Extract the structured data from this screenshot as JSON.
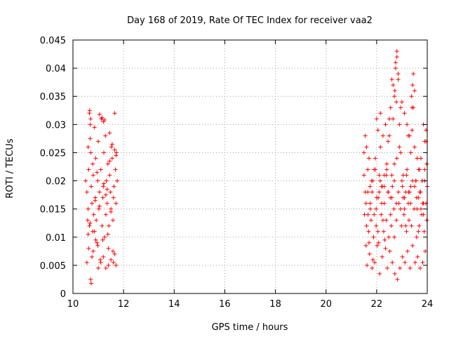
{
  "chart_data": {
    "type": "scatter",
    "title": "Day 168 of 2019, Rate Of TEC Index for receiver vaa2",
    "xlabel": "GPS time / hours",
    "ylabel": "ROTI / TECUs",
    "xlim": [
      10,
      24
    ],
    "ylim": [
      0,
      0.045
    ],
    "xticks": [
      10,
      12,
      14,
      16,
      18,
      20,
      22,
      24
    ],
    "xtick_labels": [
      "10",
      "12",
      "14",
      "16",
      "18",
      "20",
      "22",
      "24"
    ],
    "yticks": [
      0,
      0.005,
      0.01,
      0.015,
      0.02,
      0.025,
      0.03,
      0.035,
      0.04,
      0.045
    ],
    "ytick_labels": [
      "0",
      "0.005",
      "0.01",
      "0.015",
      "0.02",
      "0.025",
      "0.03",
      "0.035",
      "0.04",
      "0.045"
    ],
    "grid": true,
    "marker": "+",
    "series": [
      {
        "name": "ROTI",
        "color": "#ff0000",
        "x": [
          10.5,
          10.55,
          10.6,
          10.6,
          10.62,
          10.65,
          10.68,
          10.7,
          10.72,
          10.75,
          10.78,
          10.8,
          10.82,
          10.85,
          10.88,
          10.9,
          10.92,
          10.95,
          10.98,
          11.0,
          11.02,
          11.05,
          11.08,
          11.1,
          11.12,
          11.15,
          11.18,
          11.2,
          11.22,
          11.25,
          11.28,
          11.3,
          11.32,
          11.35,
          11.38,
          11.4,
          11.42,
          11.45,
          11.48,
          11.5,
          11.52,
          11.55,
          11.58,
          11.6,
          11.62,
          11.65,
          11.68,
          11.7,
          11.72,
          11.75,
          10.55,
          10.62,
          10.7,
          10.72,
          10.75,
          10.6,
          10.68,
          10.8,
          10.9,
          11.0,
          11.1,
          11.2,
          11.3,
          11.4,
          11.5,
          11.6,
          11.7,
          10.65,
          10.85,
          11.05,
          11.25,
          11.45,
          11.65,
          10.58,
          10.78,
          10.98,
          11.18,
          11.38,
          11.58,
          10.66,
          10.7,
          10.68,
          11.15,
          11.2,
          11.55,
          11.65,
          11.05,
          11.3,
          10.95,
          11.45,
          11.7,
          11.35,
          11.5,
          10.88,
          11.22,
          21.5,
          21.55,
          21.6,
          21.65,
          21.7,
          21.75,
          21.8,
          21.85,
          21.9,
          21.95,
          22.0,
          22.05,
          22.1,
          22.15,
          22.2,
          22.25,
          22.3,
          22.35,
          22.4,
          22.45,
          22.5,
          22.55,
          22.6,
          22.65,
          22.7,
          22.75,
          22.8,
          22.85,
          22.9,
          22.95,
          23.0,
          23.05,
          23.1,
          23.15,
          23.2,
          23.25,
          23.3,
          23.35,
          23.4,
          23.45,
          23.5,
          23.55,
          23.6,
          23.65,
          23.7,
          23.75,
          23.8,
          23.85,
          23.9,
          23.95,
          24.0,
          21.52,
          21.62,
          21.72,
          21.82,
          21.92,
          22.02,
          22.12,
          22.22,
          22.32,
          22.42,
          22.52,
          22.62,
          22.72,
          22.82,
          22.92,
          23.02,
          23.12,
          23.22,
          23.32,
          23.42,
          23.52,
          23.62,
          23.72,
          23.82,
          23.92,
          21.58,
          21.68,
          21.78,
          21.88,
          21.98,
          22.08,
          22.18,
          22.28,
          22.38,
          22.48,
          22.58,
          22.68,
          22.78,
          22.88,
          22.98,
          23.08,
          23.18,
          23.28,
          23.38,
          23.48,
          23.58,
          23.68,
          23.78,
          23.88,
          23.98,
          22.7,
          22.75,
          22.8,
          22.85,
          22.65,
          22.72,
          22.78,
          22.6,
          22.55,
          22.5,
          23.4,
          23.42,
          23.38,
          23.45,
          22.0,
          22.05,
          22.15,
          22.25,
          23.9,
          23.95,
          23.85,
          21.55,
          21.6,
          21.7,
          22.4,
          22.45,
          22.35,
          22.9,
          22.95,
          23.0,
          23.1,
          23.2,
          23.3,
          23.5,
          23.6,
          23.7,
          23.8,
          21.65,
          21.75,
          21.85,
          21.95,
          22.1,
          22.2,
          22.3,
          22.6,
          22.7,
          22.8,
          23.05,
          23.15,
          23.25,
          23.35,
          23.55,
          23.65,
          23.75,
          23.85,
          23.95,
          21.5,
          21.58,
          21.66,
          21.74,
          21.82,
          21.9,
          21.98,
          22.06,
          22.14,
          22.22,
          22.3,
          22.38,
          22.46,
          22.54,
          22.62,
          22.7,
          22.78,
          22.86,
          22.94,
          23.02,
          23.1,
          23.18,
          23.26,
          23.34,
          23.42,
          23.5,
          23.58,
          23.66,
          23.74,
          23.82,
          23.9,
          23.98
        ],
        "y": [
          0.02,
          0.018,
          0.026,
          0.015,
          0.022,
          0.012,
          0.03,
          0.025,
          0.019,
          0.016,
          0.023,
          0.021,
          0.014,
          0.011,
          0.017,
          0.024,
          0.013,
          0.009,
          0.02,
          0.027,
          0.015,
          0.018,
          0.006,
          0.022,
          0.031,
          0.012,
          0.017,
          0.019,
          0.025,
          0.01,
          0.028,
          0.014,
          0.02,
          0.016,
          0.023,
          0.008,
          0.012,
          0.021,
          0.018,
          0.015,
          0.026,
          0.024,
          0.013,
          0.017,
          0.019,
          0.007,
          0.022,
          0.016,
          0.025,
          0.02,
          0.0055,
          0.008,
          0.0025,
          0.0018,
          0.0065,
          0.0105,
          0.0125,
          0.0075,
          0.0095,
          0.0045,
          0.0055,
          0.0065,
          0.0045,
          0.005,
          0.006,
          0.0055,
          0.005,
          0.032,
          0.0295,
          0.0318,
          0.0308,
          0.0285,
          0.032,
          0.013,
          0.011,
          0.0085,
          0.0095,
          0.0105,
          0.0075,
          0.0325,
          0.031,
          0.0275,
          0.0312,
          0.0305,
          0.0265,
          0.0255,
          0.0155,
          0.0175,
          0.0215,
          0.0235,
          0.0245,
          0.0185,
          0.0145,
          0.0165,
          0.0195,
          0.025,
          0.018,
          0.012,
          0.022,
          0.009,
          0.015,
          0.02,
          0.006,
          0.014,
          0.024,
          0.017,
          0.011,
          0.021,
          0.026,
          0.016,
          0.013,
          0.019,
          0.008,
          0.023,
          0.018,
          0.028,
          0.014,
          0.021,
          0.031,
          0.035,
          0.04,
          0.042,
          0.038,
          0.03,
          0.025,
          0.02,
          0.017,
          0.015,
          0.012,
          0.022,
          0.028,
          0.018,
          0.025,
          0.033,
          0.039,
          0.036,
          0.02,
          0.015,
          0.011,
          0.018,
          0.024,
          0.02,
          0.016,
          0.022,
          0.027,
          0.019,
          0.014,
          0.005,
          0.007,
          0.0045,
          0.0055,
          0.0085,
          0.0035,
          0.0065,
          0.0095,
          0.0045,
          0.0075,
          0.0055,
          0.0035,
          0.0025,
          0.0045,
          0.0065,
          0.0055,
          0.0075,
          0.0045,
          0.0085,
          0.0055,
          0.0065,
          0.0045,
          0.0055,
          0.0075,
          0.0085,
          0.011,
          0.013,
          0.01,
          0.012,
          0.009,
          0.014,
          0.011,
          0.013,
          0.01,
          0.012,
          0.015,
          0.013,
          0.016,
          0.012,
          0.014,
          0.011,
          0.013,
          0.012,
          0.015,
          0.01,
          0.012,
          0.014,
          0.011,
          0.013,
          0.01,
          0.041,
          0.043,
          0.039,
          0.037,
          0.036,
          0.034,
          0.038,
          0.033,
          0.031,
          0.029,
          0.037,
          0.035,
          0.033,
          0.031,
          0.029,
          0.032,
          0.028,
          0.027,
          0.029,
          0.03,
          0.028,
          0.026,
          0.024,
          0.022,
          0.027,
          0.03,
          0.026,
          0.033,
          0.034,
          0.032,
          0.03,
          0.028,
          0.026,
          0.024,
          0.022,
          0.02,
          0.018,
          0.016,
          0.02,
          0.022,
          0.018,
          0.019,
          0.021,
          0.017,
          0.023,
          0.024,
          0.021,
          0.018,
          0.016,
          0.019,
          0.02,
          0.017,
          0.015,
          0.014,
          0.016,
          0.021,
          0.016,
          0.014,
          0.019,
          0.018,
          0.022,
          0.015,
          0.017,
          0.02,
          0.019,
          0.016,
          0.021,
          0.018,
          0.017,
          0.019,
          0.02,
          0.016,
          0.018,
          0.015,
          0.019,
          0.017,
          0.021,
          0.018,
          0.016,
          0.02,
          0.019,
          0.017,
          0.022,
          0.018,
          0.016,
          0.02,
          0.023
        ]
      }
    ]
  }
}
